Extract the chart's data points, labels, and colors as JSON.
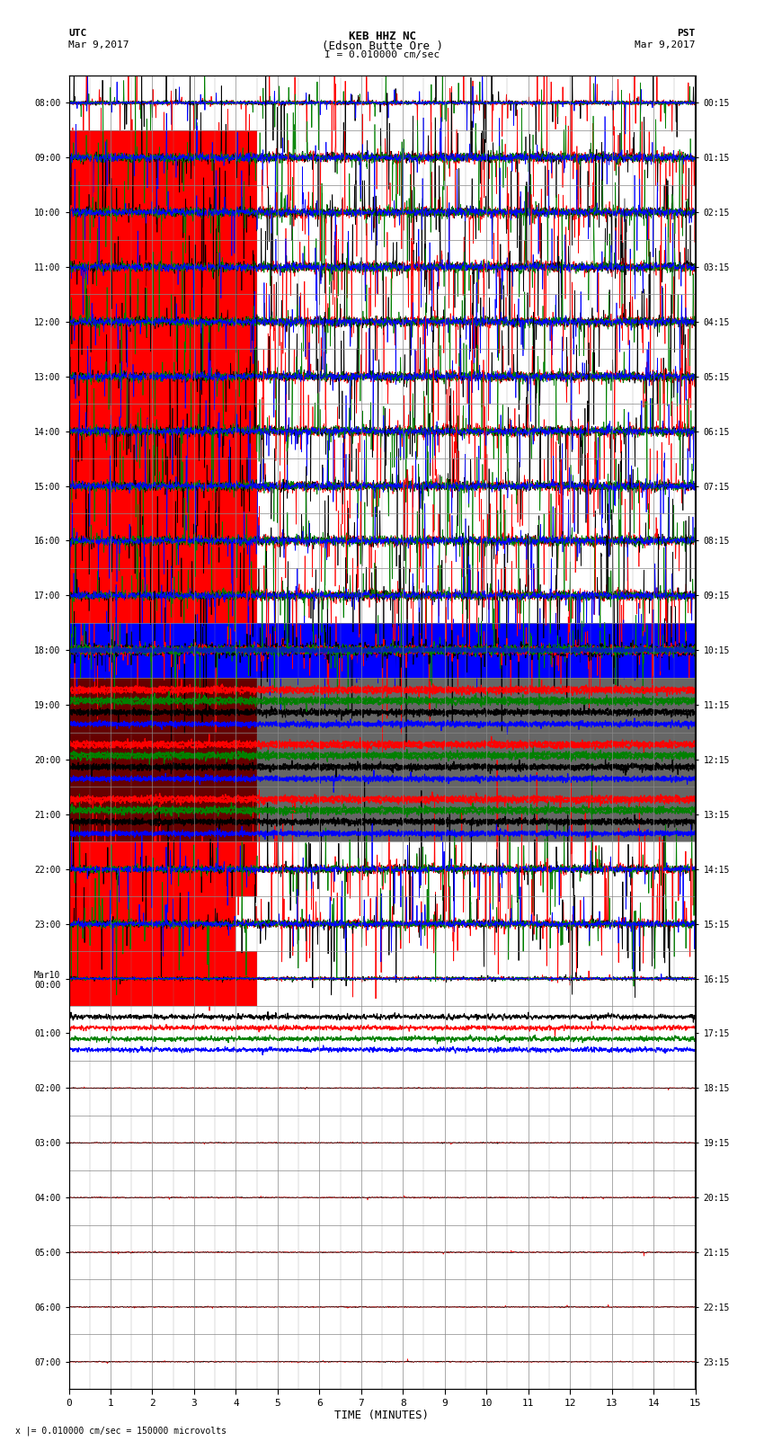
{
  "title_line1": "KEB HHZ NC",
  "title_line2": "(Edson Butte Ore )",
  "title_line3": "I = 0.010000 cm/sec",
  "label_utc": "UTC",
  "label_pst": "PST",
  "date_left": "Mar 9,2017",
  "date_right": "Mar 9,2017",
  "xlabel": "TIME (MINUTES)",
  "footer": "x |= 0.010000 cm/sec = 150000 microvolts",
  "left_yticks": [
    "08:00",
    "09:00",
    "10:00",
    "11:00",
    "12:00",
    "13:00",
    "14:00",
    "15:00",
    "16:00",
    "17:00",
    "18:00",
    "19:00",
    "20:00",
    "21:00",
    "22:00",
    "23:00",
    "Mar10\n00:00",
    "01:00",
    "02:00",
    "03:00",
    "04:00",
    "05:00",
    "06:00",
    "07:00"
  ],
  "right_yticks": [
    "00:15",
    "01:15",
    "02:15",
    "03:15",
    "04:15",
    "05:15",
    "06:15",
    "07:15",
    "08:15",
    "09:15",
    "10:15",
    "11:15",
    "12:15",
    "13:15",
    "14:15",
    "15:15",
    "16:15",
    "17:15",
    "18:15",
    "19:15",
    "20:15",
    "21:15",
    "22:15",
    "23:15"
  ],
  "num_rows": 24,
  "xlim": [
    0,
    15
  ],
  "xticks": [
    0,
    1,
    2,
    3,
    4,
    5,
    6,
    7,
    8,
    9,
    10,
    11,
    12,
    13,
    14,
    15
  ],
  "bg_color": "#ffffff",
  "grid_color": "#888888",
  "colors": {
    "red": "#ff0000",
    "blue": "#0000ff",
    "green": "#008000",
    "black": "#000000"
  }
}
